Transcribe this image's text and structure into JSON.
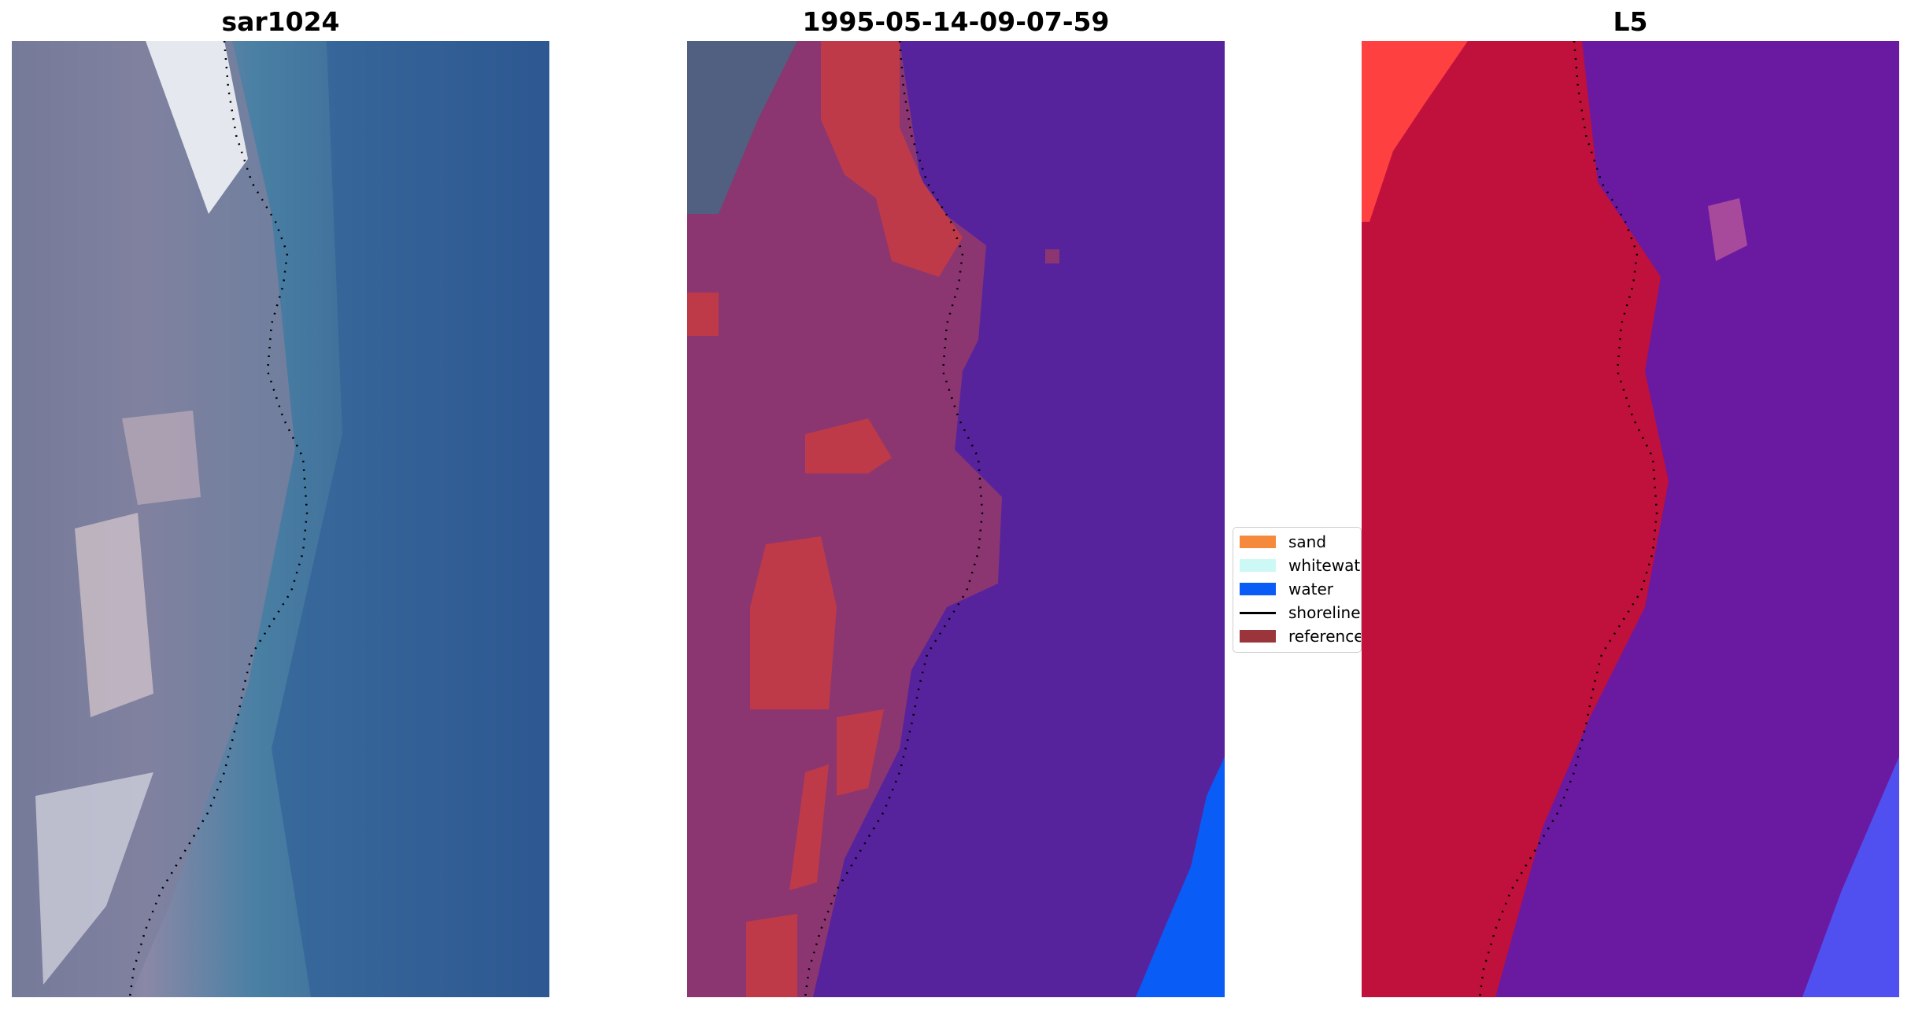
{
  "panels": [
    {
      "title": "sar1024"
    },
    {
      "title": "1995-05-14-09-07-59"
    },
    {
      "title": "L5"
    }
  ],
  "legend": {
    "items": [
      {
        "label": "sand",
        "color": "#f58a3c",
        "kind": "patch"
      },
      {
        "label": "whitewater",
        "color": "#ccf8f6",
        "kind": "patch"
      },
      {
        "label": "water",
        "color": "#0a5cf6",
        "kind": "patch"
      },
      {
        "label": "shoreline",
        "color": "#000000",
        "kind": "line"
      },
      {
        "label": "reference",
        "color": "#9b353c",
        "kind": "patch"
      }
    ]
  },
  "colors": {
    "rgb_sand": "#b8b2c0",
    "rgb_water": "#2e5a94",
    "classified_water": "#57239c",
    "classified_land": "#8b3670",
    "classified_reference": "#bf3a48",
    "index_positive": "#c0103c",
    "index_negative": "#6a1aa0"
  }
}
